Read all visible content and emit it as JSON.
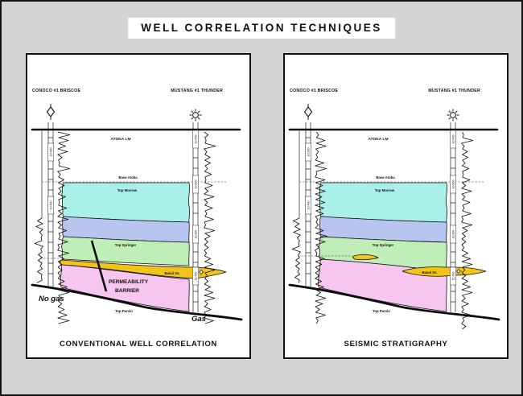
{
  "title": "WELL CORRELATION TECHNIQUES",
  "colors": {
    "background": "#d4d4d4",
    "panel_bg": "#ffffff",
    "top_morrow_cyan": "#a9f0e9",
    "mid_band_blue": "#b7c5ef",
    "top_springer_green": "#c0eeb9",
    "basal_ss_yellow": "#f0c419",
    "top_parvin_pink": "#f6c6ee",
    "annotation_red": "#e8150d"
  },
  "icons": {
    "dry_hole": "diamond-with-spikes well symbol",
    "gas_well": "sun-with-rays gas well symbol",
    "gas_show": "small sun gas show symbol"
  },
  "panels": [
    {
      "id": "conventional",
      "caption": "CONVENTIONAL WELL CORRELATION",
      "wells": {
        "left": {
          "name": "CONOCO #1 BRISCOE",
          "depth_ticks": [
            "10,000",
            "10,400"
          ]
        },
        "right": {
          "name": "MUSTANG #1 THUNDER",
          "depth_ticks": [
            "10,400",
            "10,800",
            "11,000",
            "11,400"
          ]
        }
      },
      "formations": {
        "atoka": "ATOKA LM",
        "base_atoka": "Base Atoka",
        "top_morrow": "Top Morrow",
        "top_springer": "Top Springer",
        "basal_ss": "Basal Ss.",
        "top_parvin": "Top Parvin"
      },
      "annotations": {
        "barrier_line1": "PERMEABILITY",
        "barrier_line2": "BARRIER",
        "no_gas": "No gas",
        "gas": "Gas"
      }
    },
    {
      "id": "seismic",
      "caption": "SEISMIC STRATIGRAPHY",
      "wells": {
        "left": {
          "name": "CONOCO #1 BRISCOE",
          "depth_ticks": [
            "10,000",
            "10,400"
          ]
        },
        "right": {
          "name": "MUSTANG #1 THUNDER",
          "depth_ticks": [
            "10,400",
            "10,800",
            "11,000",
            "11,400"
          ]
        }
      },
      "formations": {
        "atoka": "ATOKA LM",
        "base_atoka": "Base Atoka",
        "top_morrow": "Top Morrow",
        "top_springer": "Top Springer",
        "basal_ss": "Basal Ss.",
        "top_parvin": "Top Parvin"
      }
    }
  ]
}
